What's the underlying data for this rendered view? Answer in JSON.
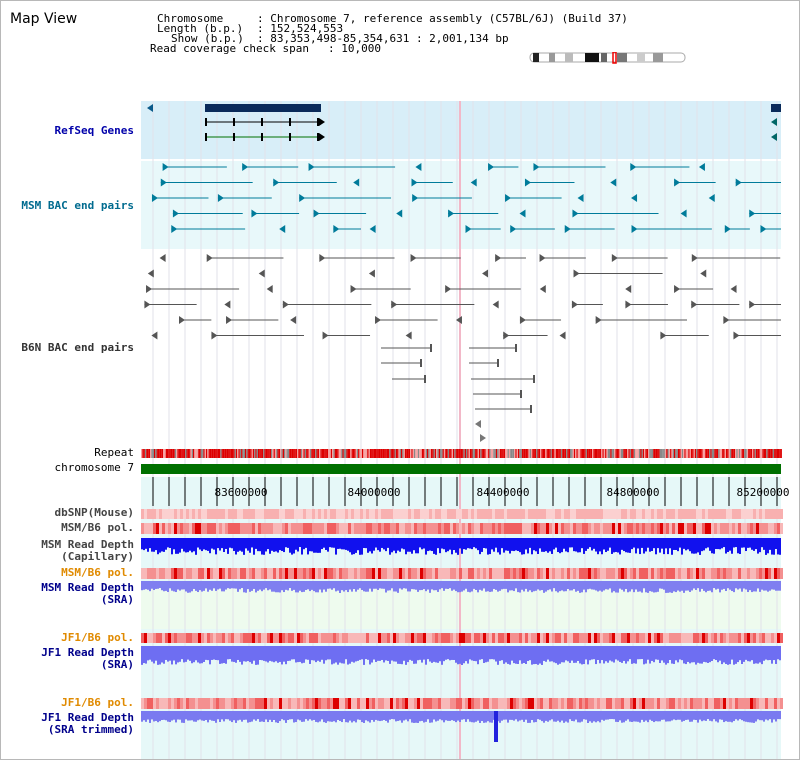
{
  "view_title": "Map View",
  "info": {
    "chromosome_key": "Chromosome",
    "chromosome_val": ": Chromosome 7, reference assembly (C57BL/6J) (Build 37)",
    "length_key": "Length (b.p.)",
    "length_val": ": 152,524,553",
    "show_key": "Show (b.p.)",
    "show_val": ": 83,353,498-85,354,631 : 2,001,134 bp",
    "read_cov_key": "Read coverage check span",
    "read_cov_val": ": 10,000"
  },
  "tracks": {
    "refseq": "RefSeq Genes",
    "msm_bac": "MSM BAC end pairs",
    "b6n_bac": "B6N BAC end pairs",
    "repeat": "Repeat",
    "chromosome": "chromosome 7",
    "dbsnp": "dbSNP(Mouse)",
    "msm_b6_pol": "MSM/B6 pol.",
    "msm_read_depth_cap_1": "MSM Read Depth",
    "msm_read_depth_cap_2": "(Capillary)",
    "msm_b6_pol_2": "MSM/B6 pol.",
    "msm_read_depth_sra_1": "MSM Read Depth",
    "msm_read_depth_sra_2": "(SRA)",
    "jf1_b6_pol": "JF1/B6 pol.",
    "jf1_read_depth_sra_1": "JF1 Read Depth",
    "jf1_read_depth_sra_2": "(SRA)",
    "jf1_b6_pol_2": "JF1/B6 pol.",
    "jf1_read_depth_trim_1": "JF1 Read Depth",
    "jf1_read_depth_trim_2": "(SRA trimmed)"
  },
  "axis_ticks": [
    "83600000",
    "84000000",
    "84400000",
    "84800000",
    "85200000"
  ],
  "colors": {
    "refseq_label": "#0000aa",
    "msm_label": "#006b8f",
    "b6n_label": "#333333",
    "pol_orange": "#e08a00",
    "depth_blue": "#00008b",
    "refseq_bg": "#d8eef8",
    "bac_bg": "#e8f8fa",
    "lower_bg": "#e6f8f8",
    "chromosome_green": "#007000",
    "repeat_red": "#dd0000",
    "depth_bar": "#2222ff"
  }
}
